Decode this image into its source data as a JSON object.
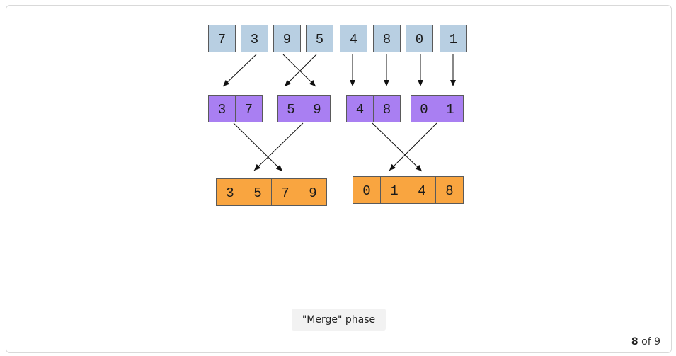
{
  "colors": {
    "input": "#b8cfe2",
    "pairs": "#a97ff2",
    "merged": "#f9a540",
    "stroke": "#5a5a5a",
    "arrow": "#111111"
  },
  "diagram": {
    "rows": [
      {
        "name": "input-row",
        "color": "input",
        "groups": [
          [
            "7"
          ],
          [
            "3"
          ],
          [
            "9"
          ],
          [
            "5"
          ],
          [
            "4"
          ],
          [
            "8"
          ],
          [
            "0"
          ],
          [
            "1"
          ]
        ]
      },
      {
        "name": "pair-row",
        "color": "pairs",
        "groups": [
          [
            "3",
            "7"
          ],
          [
            "5",
            "9"
          ],
          [
            "4",
            "8"
          ],
          [
            "0",
            "1"
          ]
        ]
      },
      {
        "name": "merged-row",
        "color": "merged",
        "groups": [
          [
            "3",
            "5",
            "7",
            "9"
          ],
          [
            "0",
            "1",
            "4",
            "8"
          ]
        ]
      }
    ]
  },
  "caption": "\"Merge\" phase",
  "pager": {
    "current": "8",
    "separator": "of",
    "total": "9"
  }
}
